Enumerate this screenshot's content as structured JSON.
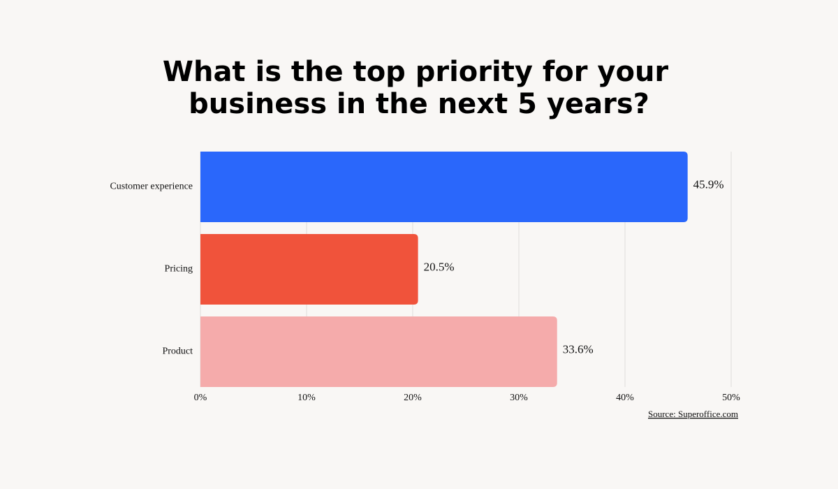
{
  "chart_data": {
    "type": "hbar",
    "title": [
      "What is the top priority for your",
      "business in the next 5 years?"
    ],
    "categories": [
      "Customer experience",
      "Pricing",
      "Product"
    ],
    "values": [
      45.9,
      20.5,
      33.6
    ],
    "value_labels": [
      "45.9%",
      "20.5%",
      "33.6%"
    ],
    "colors": [
      "#2a67fb",
      "#f0533b",
      "#f5abab"
    ],
    "xlim": [
      0,
      50
    ],
    "xticks": [
      {
        "value": 0,
        "label": "0%"
      },
      {
        "value": 10,
        "label": "10%"
      },
      {
        "value": 20,
        "label": "20%"
      },
      {
        "value": 30,
        "label": "30%"
      },
      {
        "value": 40,
        "label": "40%"
      },
      {
        "value": 50,
        "label": "50%"
      }
    ],
    "grid": true,
    "source": "Source: Superoffice.com"
  }
}
